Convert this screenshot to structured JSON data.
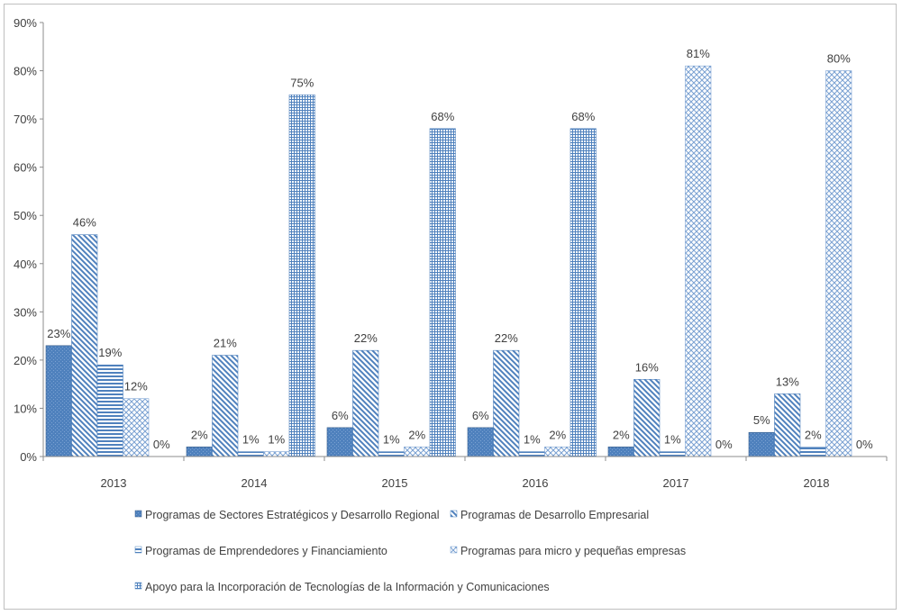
{
  "chart_data": {
    "type": "bar",
    "categories": [
      "2013",
      "2014",
      "2015",
      "2016",
      "2017",
      "2018"
    ],
    "series": [
      {
        "name": "Programas de Sectores Estratégicos y Desarrollo Regional",
        "values": [
          23,
          2,
          6,
          6,
          2,
          5
        ],
        "labels": [
          "23%",
          "2%",
          "6%",
          "6%",
          "2%",
          "5%"
        ]
      },
      {
        "name": "Programas de Desarrollo Empresarial",
        "values": [
          46,
          21,
          22,
          22,
          16,
          13
        ],
        "labels": [
          "46%",
          "21%",
          "22%",
          "22%",
          "16%",
          "13%"
        ]
      },
      {
        "name": "Programas de Emprendedores y Financiamiento",
        "values": [
          19,
          1,
          1,
          1,
          1,
          2
        ],
        "labels": [
          "19%",
          "1%",
          "1%",
          "1%",
          "1%",
          "2%"
        ]
      },
      {
        "name": "Programas para micro y pequeñas empresas",
        "values": [
          12,
          1,
          2,
          2,
          81,
          80
        ],
        "labels": [
          "12%",
          "1%",
          "2%",
          "2%",
          "81%",
          "80%"
        ]
      },
      {
        "name": "Apoyo para la Incorporación de Tecnologías de la Información y Comunicaciones",
        "values": [
          0,
          75,
          68,
          68,
          0,
          0
        ],
        "labels": [
          "0%",
          "75%",
          "68%",
          "68%",
          "0%",
          "0%"
        ]
      }
    ],
    "yticks": [
      "0%",
      "10%",
      "20%",
      "30%",
      "40%",
      "50%",
      "60%",
      "70%",
      "80%",
      "90%"
    ],
    "ylim": [
      0,
      90
    ],
    "grid": false,
    "legend_position": "bottom",
    "title": "",
    "xlabel": "",
    "ylabel": "",
    "colors": {
      "primary": "#4f81bd",
      "dark": "#385d8a"
    }
  }
}
